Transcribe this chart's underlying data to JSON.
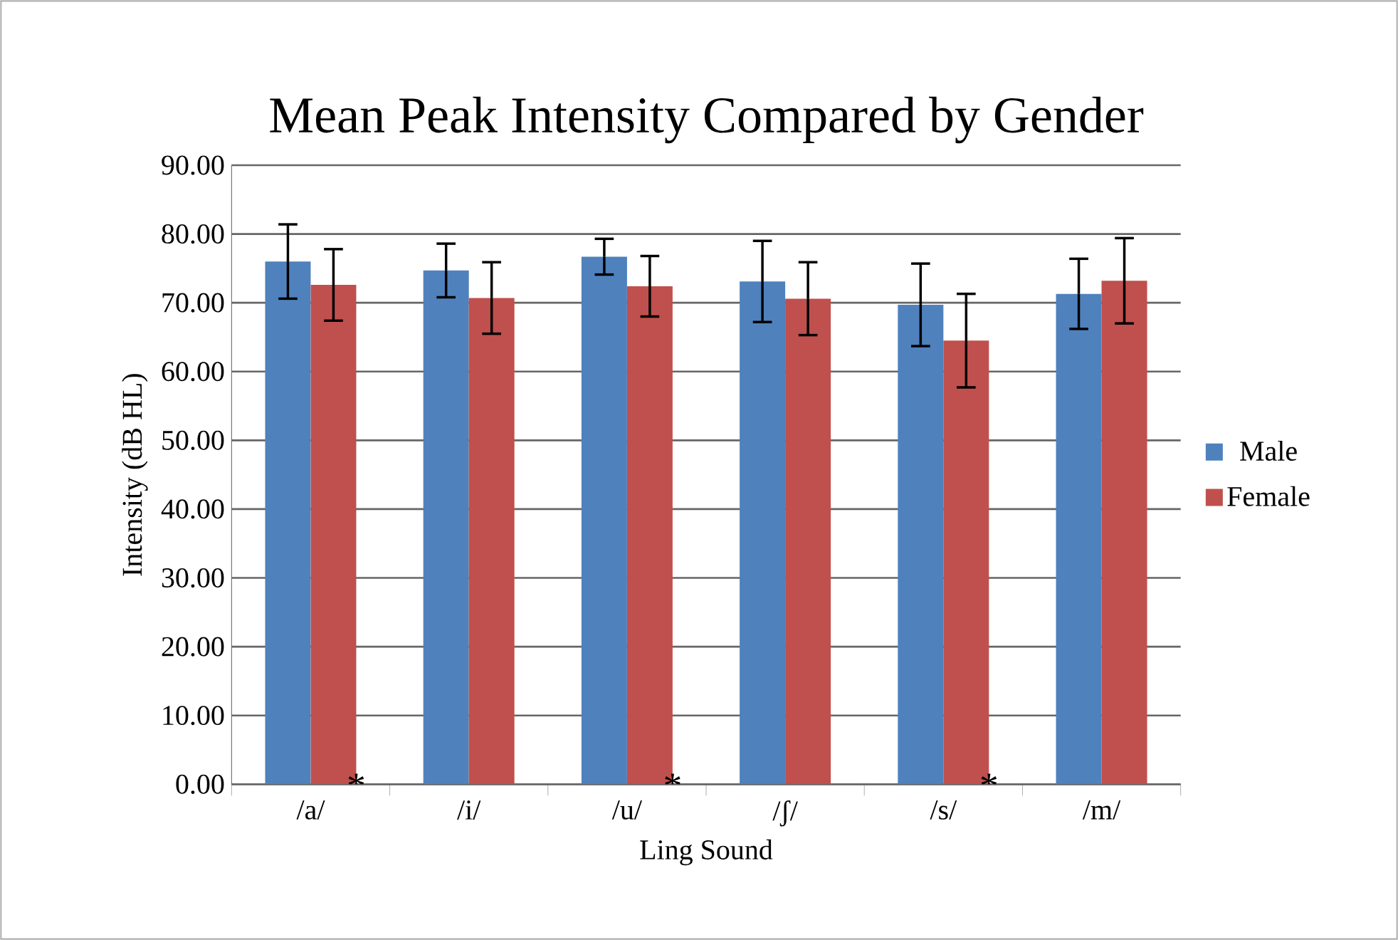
{
  "chart_data": {
    "type": "bar",
    "title": "Mean Peak Intensity Compared by Gender",
    "xlabel": "Ling Sound",
    "ylabel": "Intensity (dB HL)",
    "categories": [
      "/a/",
      "/i/",
      "/u/",
      "/ʃ/",
      "/s/",
      "/m/"
    ],
    "series": [
      {
        "name": "Male",
        "color": "#4f81bd",
        "values": [
          76.0,
          74.7,
          76.7,
          73.1,
          69.7,
          71.3
        ],
        "errors": [
          5.4,
          3.9,
          2.6,
          5.9,
          6.0,
          5.1
        ]
      },
      {
        "name": "Female",
        "color": "#c0504d",
        "values": [
          72.6,
          70.7,
          72.4,
          70.6,
          64.5,
          73.2
        ],
        "errors": [
          5.2,
          5.2,
          4.4,
          5.3,
          6.8,
          6.2
        ]
      }
    ],
    "ylim": [
      0,
      90
    ],
    "yticks": [
      {
        "value": 0,
        "label": "0.00"
      },
      {
        "value": 10,
        "label": "10.00"
      },
      {
        "value": 20,
        "label": "20.00"
      },
      {
        "value": 30,
        "label": "30.00"
      },
      {
        "value": 40,
        "label": "40.00"
      },
      {
        "value": 50,
        "label": "50.00"
      },
      {
        "value": 60,
        "label": "60.00"
      },
      {
        "value": 70,
        "label": "70.00"
      },
      {
        "value": 80,
        "label": "80.00"
      },
      {
        "value": 90,
        "label": "90.00"
      }
    ],
    "grid": "y",
    "legend": "right",
    "annotations": [
      {
        "text": "*",
        "x": "/a/",
        "y": 0
      },
      {
        "text": "*",
        "x": "/u/",
        "y": 0
      },
      {
        "text": "*",
        "x": "/s/",
        "y": 0
      }
    ]
  }
}
